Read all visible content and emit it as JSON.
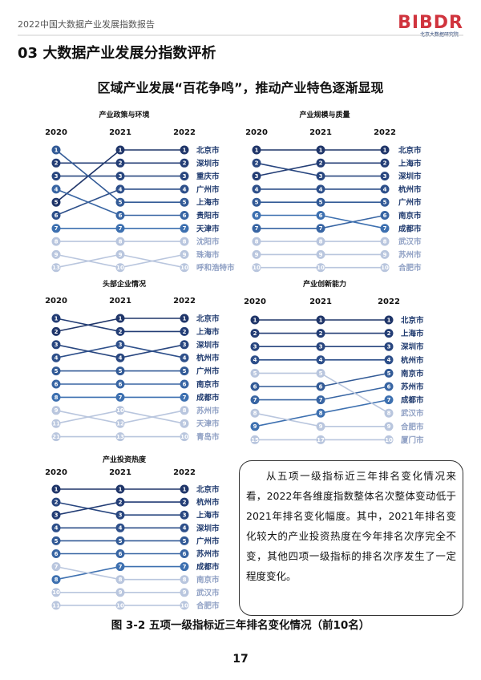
{
  "header": {
    "report": "2022中国大数据产业发展指数报告",
    "logo": "BIBDR",
    "logo_sub": "北京大数据研究院"
  },
  "section_title": "03 大数据产业发展分指数评析",
  "subtitle": "区域产业发展“百花争鸣”，推动产业特色逐渐显现",
  "panels": [
    {
      "title": "产业政策与环境",
      "years": [
        "2020",
        "2021",
        "2022"
      ],
      "rows": [
        {
          "city": "北京市",
          "ranks": [
            5,
            1,
            1
          ]
        },
        {
          "city": "深圳市",
          "ranks": [
            2,
            2,
            2
          ]
        },
        {
          "city": "重庆市",
          "ranks": [
            3,
            3,
            3
          ]
        },
        {
          "city": "广州市",
          "ranks": [
            6,
            4,
            4
          ]
        },
        {
          "city": "上海市",
          "ranks": [
            1,
            5,
            5
          ]
        },
        {
          "city": "贵阳市",
          "ranks": [
            4,
            6,
            6
          ]
        },
        {
          "city": "天津市",
          "ranks": [
            7,
            7,
            7
          ]
        },
        {
          "city": "沈阳市",
          "ranks": [
            8,
            8,
            8
          ]
        },
        {
          "city": "珠海市",
          "ranks": [
            9,
            10,
            9
          ]
        },
        {
          "city": "呼和浩特市",
          "ranks": [
            13,
            9,
            10
          ]
        }
      ]
    },
    {
      "title": "产业规模与质量",
      "years": [
        "2020",
        "2021",
        "2022"
      ],
      "rows": [
        {
          "city": "北京市",
          "ranks": [
            1,
            1,
            1
          ]
        },
        {
          "city": "上海市",
          "ranks": [
            3,
            2,
            2
          ]
        },
        {
          "city": "深圳市",
          "ranks": [
            2,
            3,
            3
          ]
        },
        {
          "city": "杭州市",
          "ranks": [
            4,
            4,
            4
          ]
        },
        {
          "city": "广州市",
          "ranks": [
            5,
            5,
            5
          ]
        },
        {
          "city": "南京市",
          "ranks": [
            7,
            7,
            6
          ]
        },
        {
          "city": "成都市",
          "ranks": [
            6,
            6,
            7
          ]
        },
        {
          "city": "武汉市",
          "ranks": [
            8,
            8,
            8
          ]
        },
        {
          "city": "苏州市",
          "ranks": [
            9,
            9,
            9
          ]
        },
        {
          "city": "合肥市",
          "ranks": [
            10,
            10,
            10
          ]
        }
      ]
    },
    {
      "title": "头部企业情况",
      "years": [
        "2020",
        "2021",
        "2022"
      ],
      "rows": [
        {
          "city": "北京市",
          "ranks": [
            2,
            1,
            1
          ]
        },
        {
          "city": "上海市",
          "ranks": [
            1,
            2,
            2
          ]
        },
        {
          "city": "深圳市",
          "ranks": [
            3,
            4,
            3
          ]
        },
        {
          "city": "杭州市",
          "ranks": [
            4,
            3,
            4
          ]
        },
        {
          "city": "广州市",
          "ranks": [
            5,
            5,
            5
          ]
        },
        {
          "city": "南京市",
          "ranks": [
            6,
            6,
            6
          ]
        },
        {
          "city": "成都市",
          "ranks": [
            8,
            7,
            7
          ]
        },
        {
          "city": "苏州市",
          "ranks": [
            9,
            12,
            8
          ]
        },
        {
          "city": "天津市",
          "ranks": [
            11,
            10,
            9
          ]
        },
        {
          "city": "青岛市",
          "ranks": [
            21,
            13,
            10
          ]
        }
      ]
    },
    {
      "title": "产业创新能力",
      "years": [
        "2020",
        "2021",
        "2022"
      ],
      "rows": [
        {
          "city": "北京市",
          "ranks": [
            1,
            1,
            1
          ]
        },
        {
          "city": "上海市",
          "ranks": [
            2,
            2,
            2
          ]
        },
        {
          "city": "深圳市",
          "ranks": [
            3,
            3,
            3
          ]
        },
        {
          "city": "杭州市",
          "ranks": [
            4,
            4,
            4
          ]
        },
        {
          "city": "南京市",
          "ranks": [
            6,
            6,
            5
          ]
        },
        {
          "city": "苏州市",
          "ranks": [
            7,
            7,
            6
          ]
        },
        {
          "city": "成都市",
          "ranks": [
            9,
            8,
            7
          ]
        },
        {
          "city": "武汉市",
          "ranks": [
            5,
            5,
            8
          ]
        },
        {
          "city": "合肥市",
          "ranks": [
            8,
            9,
            9
          ]
        },
        {
          "city": "厦门市",
          "ranks": [
            15,
            17,
            10
          ]
        }
      ]
    },
    {
      "title": "产业投资热度",
      "years": [
        "2020",
        "2021",
        "2022"
      ],
      "rows": [
        {
          "city": "北京市",
          "ranks": [
            1,
            1,
            1
          ]
        },
        {
          "city": "杭州市",
          "ranks": [
            3,
            2,
            2
          ]
        },
        {
          "city": "上海市",
          "ranks": [
            2,
            3,
            3
          ]
        },
        {
          "city": "深圳市",
          "ranks": [
            4,
            4,
            4
          ]
        },
        {
          "city": "广州市",
          "ranks": [
            5,
            5,
            5
          ]
        },
        {
          "city": "苏州市",
          "ranks": [
            6,
            6,
            6
          ]
        },
        {
          "city": "成都市",
          "ranks": [
            8,
            7,
            7
          ]
        },
        {
          "city": "南京市",
          "ranks": [
            7,
            8,
            8
          ]
        },
        {
          "city": "武汉市",
          "ranks": [
            10,
            9,
            9
          ]
        },
        {
          "city": "合肥市",
          "ranks": [
            11,
            10,
            10
          ]
        }
      ]
    }
  ],
  "note": "从五项一级指标近三年排名变化情况来看，2022年各维度指数整体名次整体变动低于2021年排名变化幅度。其中，2021年排名变化较大的产业投资热度在今年排名次序完全不变，其他四项一级指标的排名次序发生了一定程度变化。",
  "caption": "图 3-2  五项一级指标近三年排名变化情况（前10名）",
  "page": "17"
}
